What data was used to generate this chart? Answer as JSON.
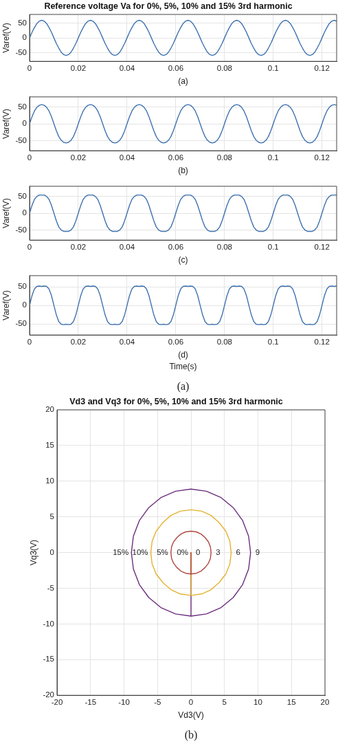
{
  "chart_data": [
    {
      "type": "line",
      "title": "Reference voltage Va for 0%, 5%, 10% and 15% 3rd harmonic",
      "ylabel": "Varef(V)",
      "annotations": [
        "(a)"
      ],
      "grid": true,
      "marker": "none",
      "xlim": [
        0,
        0.126
      ],
      "xticks": [
        0,
        0.02,
        0.04,
        0.06,
        0.08,
        0.1,
        0.12
      ],
      "ylim": [
        -80,
        80
      ],
      "yticks": [
        -50,
        0,
        50
      ],
      "x": [
        0,
        0.001,
        0.002,
        0.003,
        0.004,
        0.005,
        0.006,
        0.007,
        0.008,
        0.009,
        0.01,
        0.011,
        0.012,
        0.013,
        0.014,
        0.015,
        0.016,
        0.017,
        0.018,
        0.019,
        0.02,
        0.021,
        0.022,
        0.023,
        0.024,
        0.025,
        0.026,
        0.027,
        0.028,
        0.029,
        0.03,
        0.031,
        0.032,
        0.033,
        0.034,
        0.035,
        0.036,
        0.037,
        0.038,
        0.039,
        0.04,
        0.041,
        0.042,
        0.043,
        0.044,
        0.045,
        0.046,
        0.047,
        0.048,
        0.049,
        0.05,
        0.051,
        0.052,
        0.053,
        0.054,
        0.055,
        0.056,
        0.057,
        0.058,
        0.059,
        0.06,
        0.061,
        0.062,
        0.063,
        0.064,
        0.065,
        0.066,
        0.067,
        0.068,
        0.069,
        0.07,
        0.071,
        0.072,
        0.073,
        0.074,
        0.075,
        0.076,
        0.077,
        0.078,
        0.079,
        0.08,
        0.081,
        0.082,
        0.083,
        0.084,
        0.085,
        0.086,
        0.087,
        0.088,
        0.089,
        0.09,
        0.091,
        0.092,
        0.093,
        0.094,
        0.095,
        0.096,
        0.097,
        0.098,
        0.099,
        0.1,
        0.101,
        0.102,
        0.103,
        0.104,
        0.105,
        0.106,
        0.107,
        0.108,
        0.109,
        0.11,
        0.111,
        0.112,
        0.113,
        0.114,
        0.115,
        0.116,
        0.117,
        0.118,
        0.119,
        0.12,
        0.121,
        0.122,
        0.123,
        0.124,
        0.125,
        0.126
      ],
      "series": [
        {
          "color": "#3f72af",
          "values": [
            0,
            19,
            35,
            49,
            57,
            60,
            57,
            49,
            35,
            19,
            0,
            -19,
            -35,
            -49,
            -57,
            -60,
            -57,
            -49,
            -35,
            -19,
            0,
            19,
            35,
            49,
            57,
            60,
            57,
            49,
            35,
            19,
            0,
            -19,
            -35,
            -49,
            -57,
            -60,
            -57,
            -49,
            -35,
            -19,
            0,
            19,
            35,
            49,
            57,
            60,
            57,
            49,
            35,
            19,
            0,
            -19,
            -35,
            -49,
            -57,
            -60,
            -57,
            -49,
            -35,
            -19,
            0,
            19,
            35,
            49,
            57,
            60,
            57,
            49,
            35,
            19,
            0,
            -19,
            -35,
            -49,
            -57,
            -60,
            -57,
            -49,
            -35,
            -19,
            0,
            19,
            35,
            49,
            57,
            60,
            57,
            49,
            35,
            19,
            0,
            -19,
            -35,
            -49,
            -57,
            -60,
            -57,
            -49,
            -35,
            -19,
            0,
            19,
            35,
            49,
            57,
            60,
            57,
            49,
            35,
            19,
            0,
            -19,
            -35,
            -49,
            -57,
            -60,
            -57,
            -49,
            -35,
            -19,
            0,
            19,
            35,
            49,
            57,
            60,
            57
          ]
        }
      ]
    },
    {
      "type": "line",
      "ylabel": "Varef(V)",
      "annotations": [
        "(b)"
      ],
      "grid": true,
      "marker": "none",
      "xlim": [
        0,
        0.126
      ],
      "xticks": [
        0,
        0.02,
        0.04,
        0.06,
        0.08,
        0.1,
        0.12
      ],
      "ylim": [
        -80,
        80
      ],
      "yticks": [
        -50,
        0,
        50
      ],
      "x": [
        0,
        0.001,
        0.002,
        0.003,
        0.004,
        0.005,
        0.006,
        0.007,
        0.008,
        0.009,
        0.01,
        0.011,
        0.012,
        0.013,
        0.014,
        0.015,
        0.016,
        0.017,
        0.018,
        0.019,
        0.02,
        0.021,
        0.022,
        0.023,
        0.024,
        0.025,
        0.026,
        0.027,
        0.028,
        0.029,
        0.03,
        0.031,
        0.032,
        0.033,
        0.034,
        0.035,
        0.036,
        0.037,
        0.038,
        0.039,
        0.04,
        0.041,
        0.042,
        0.043,
        0.044,
        0.045,
        0.046,
        0.047,
        0.048,
        0.049,
        0.05,
        0.051,
        0.052,
        0.053,
        0.054,
        0.055,
        0.056,
        0.057,
        0.058,
        0.059,
        0.06,
        0.061,
        0.062,
        0.063,
        0.064,
        0.065,
        0.066,
        0.067,
        0.068,
        0.069,
        0.07,
        0.071,
        0.072,
        0.073,
        0.074,
        0.075,
        0.076,
        0.077,
        0.078,
        0.079,
        0.08,
        0.081,
        0.082,
        0.083,
        0.084,
        0.085,
        0.086,
        0.087,
        0.088,
        0.089,
        0.09,
        0.091,
        0.092,
        0.093,
        0.094,
        0.095,
        0.096,
        0.097,
        0.098,
        0.099,
        0.1,
        0.101,
        0.102,
        0.103,
        0.104,
        0.105,
        0.106,
        0.107,
        0.108,
        0.109,
        0.11,
        0.111,
        0.112,
        0.113,
        0.114,
        0.115,
        0.116,
        0.117,
        0.118,
        0.119,
        0.12,
        0.121,
        0.122,
        0.123,
        0.124,
        0.125,
        0.126
      ],
      "series": [
        {
          "color": "#3f72af",
          "values": [
            0,
            21,
            38,
            49,
            55,
            57,
            55,
            49,
            38,
            21,
            0,
            -21,
            -38,
            -49,
            -55,
            -57,
            -55,
            -49,
            -38,
            -21,
            0,
            21,
            38,
            49,
            55,
            57,
            55,
            49,
            38,
            21,
            0,
            -21,
            -38,
            -49,
            -55,
            -57,
            -55,
            -49,
            -38,
            -21,
            0,
            21,
            38,
            49,
            55,
            57,
            55,
            49,
            38,
            21,
            0,
            -21,
            -38,
            -49,
            -55,
            -57,
            -55,
            -49,
            -38,
            -21,
            0,
            21,
            38,
            49,
            55,
            57,
            55,
            49,
            38,
            21,
            0,
            -21,
            -38,
            -49,
            -55,
            -57,
            -55,
            -49,
            -38,
            -21,
            0,
            21,
            38,
            49,
            55,
            57,
            55,
            49,
            38,
            21,
            0,
            -21,
            -38,
            -49,
            -55,
            -57,
            -55,
            -49,
            -38,
            -21,
            0,
            21,
            38,
            49,
            55,
            57,
            55,
            49,
            38,
            21,
            0,
            -21,
            -38,
            -49,
            -55,
            -57,
            -55,
            -49,
            -38,
            -21,
            0,
            21,
            38,
            49,
            55,
            57,
            55
          ]
        }
      ]
    },
    {
      "type": "line",
      "ylabel": "Varef(V)",
      "annotations": [
        "(c)"
      ],
      "grid": true,
      "marker": "none",
      "xlim": [
        0,
        0.126
      ],
      "xticks": [
        0,
        0.02,
        0.04,
        0.06,
        0.08,
        0.1,
        0.12
      ],
      "ylim": [
        -80,
        80
      ],
      "yticks": [
        -50,
        0,
        50
      ],
      "x": [
        0,
        0.001,
        0.002,
        0.003,
        0.004,
        0.005,
        0.006,
        0.007,
        0.008,
        0.009,
        0.01,
        0.011,
        0.012,
        0.013,
        0.014,
        0.015,
        0.016,
        0.017,
        0.018,
        0.019,
        0.02,
        0.021,
        0.022,
        0.023,
        0.024,
        0.025,
        0.026,
        0.027,
        0.028,
        0.029,
        0.03,
        0.031,
        0.032,
        0.033,
        0.034,
        0.035,
        0.036,
        0.037,
        0.038,
        0.039,
        0.04,
        0.041,
        0.042,
        0.043,
        0.044,
        0.045,
        0.046,
        0.047,
        0.048,
        0.049,
        0.05,
        0.051,
        0.052,
        0.053,
        0.054,
        0.055,
        0.056,
        0.057,
        0.058,
        0.059,
        0.06,
        0.061,
        0.062,
        0.063,
        0.064,
        0.065,
        0.066,
        0.067,
        0.068,
        0.069,
        0.07,
        0.071,
        0.072,
        0.073,
        0.074,
        0.075,
        0.076,
        0.077,
        0.078,
        0.079,
        0.08,
        0.081,
        0.082,
        0.083,
        0.084,
        0.085,
        0.086,
        0.087,
        0.088,
        0.089,
        0.09,
        0.091,
        0.092,
        0.093,
        0.094,
        0.095,
        0.096,
        0.097,
        0.098,
        0.099,
        0.1,
        0.101,
        0.102,
        0.103,
        0.104,
        0.105,
        0.106,
        0.107,
        0.108,
        0.109,
        0.11,
        0.111,
        0.112,
        0.113,
        0.114,
        0.115,
        0.116,
        0.117,
        0.118,
        0.119,
        0.12,
        0.121,
        0.122,
        0.123,
        0.124,
        0.125,
        0.126
      ],
      "series": [
        {
          "color": "#3f72af",
          "values": [
            0,
            23,
            41,
            50,
            54,
            54,
            54,
            50,
            41,
            23,
            0,
            -23,
            -41,
            -50,
            -54,
            -54,
            -54,
            -50,
            -41,
            -23,
            0,
            23,
            41,
            50,
            54,
            54,
            54,
            50,
            41,
            23,
            0,
            -23,
            -41,
            -50,
            -54,
            -54,
            -54,
            -50,
            -41,
            -23,
            0,
            23,
            41,
            50,
            54,
            54,
            54,
            50,
            41,
            23,
            0,
            -23,
            -41,
            -50,
            -54,
            -54,
            -54,
            -50,
            -41,
            -23,
            0,
            23,
            41,
            50,
            54,
            54,
            54,
            50,
            41,
            23,
            0,
            -23,
            -41,
            -50,
            -54,
            -54,
            -54,
            -50,
            -41,
            -23,
            0,
            23,
            41,
            50,
            54,
            54,
            54,
            50,
            41,
            23,
            0,
            -23,
            -41,
            -50,
            -54,
            -54,
            -54,
            -50,
            -41,
            -23,
            0,
            23,
            41,
            50,
            54,
            54,
            54,
            50,
            41,
            23,
            0,
            -23,
            -41,
            -50,
            -54,
            -54,
            -54,
            -50,
            -41,
            -23,
            0,
            23,
            41,
            50,
            54,
            54,
            54
          ]
        }
      ]
    },
    {
      "type": "line",
      "ylabel": "Varef(V)",
      "xlabel": "Time(s)",
      "annotations": [
        "(d)",
        "(a)"
      ],
      "grid": true,
      "marker": "none",
      "xlim": [
        0,
        0.126
      ],
      "xticks": [
        0,
        0.02,
        0.04,
        0.06,
        0.08,
        0.1,
        0.12
      ],
      "ylim": [
        -80,
        80
      ],
      "yticks": [
        -50,
        0,
        50
      ],
      "x": [
        0,
        0.001,
        0.002,
        0.003,
        0.004,
        0.005,
        0.006,
        0.007,
        0.008,
        0.009,
        0.01,
        0.011,
        0.012,
        0.013,
        0.014,
        0.015,
        0.016,
        0.017,
        0.018,
        0.019,
        0.02,
        0.021,
        0.022,
        0.023,
        0.024,
        0.025,
        0.026,
        0.027,
        0.028,
        0.029,
        0.03,
        0.031,
        0.032,
        0.033,
        0.034,
        0.035,
        0.036,
        0.037,
        0.038,
        0.039,
        0.04,
        0.041,
        0.042,
        0.043,
        0.044,
        0.045,
        0.046,
        0.047,
        0.048,
        0.049,
        0.05,
        0.051,
        0.052,
        0.053,
        0.054,
        0.055,
        0.056,
        0.057,
        0.058,
        0.059,
        0.06,
        0.061,
        0.062,
        0.063,
        0.064,
        0.065,
        0.066,
        0.067,
        0.068,
        0.069,
        0.07,
        0.071,
        0.072,
        0.073,
        0.074,
        0.075,
        0.076,
        0.077,
        0.078,
        0.079,
        0.08,
        0.081,
        0.082,
        0.083,
        0.084,
        0.085,
        0.086,
        0.087,
        0.088,
        0.089,
        0.09,
        0.091,
        0.092,
        0.093,
        0.094,
        0.095,
        0.096,
        0.097,
        0.098,
        0.099,
        0.1,
        0.101,
        0.102,
        0.103,
        0.104,
        0.105,
        0.106,
        0.107,
        0.108,
        0.109,
        0.11,
        0.111,
        0.112,
        0.113,
        0.114,
        0.115,
        0.116,
        0.117,
        0.118,
        0.119,
        0.12,
        0.121,
        0.122,
        0.123,
        0.124,
        0.125,
        0.126
      ],
      "series": [
        {
          "color": "#3f72af",
          "values": [
            0,
            26,
            44,
            51,
            52,
            51,
            52,
            51,
            44,
            26,
            0,
            -26,
            -44,
            -51,
            -52,
            -51,
            -52,
            -51,
            -44,
            -26,
            0,
            26,
            44,
            51,
            52,
            51,
            52,
            51,
            44,
            26,
            0,
            -26,
            -44,
            -51,
            -52,
            -51,
            -52,
            -51,
            -44,
            -26,
            0,
            26,
            44,
            51,
            52,
            51,
            52,
            51,
            44,
            26,
            0,
            -26,
            -44,
            -51,
            -52,
            -51,
            -52,
            -51,
            -44,
            -26,
            0,
            26,
            44,
            51,
            52,
            51,
            52,
            51,
            44,
            26,
            0,
            -26,
            -44,
            -51,
            -52,
            -51,
            -52,
            -51,
            -44,
            -26,
            0,
            26,
            44,
            51,
            52,
            51,
            52,
            51,
            44,
            26,
            0,
            -26,
            -44,
            -51,
            -52,
            -51,
            -52,
            -51,
            -44,
            -26,
            0,
            26,
            44,
            51,
            52,
            51,
            52,
            51,
            44,
            26,
            0,
            -26,
            -44,
            -51,
            -52,
            -51,
            -52,
            -51,
            -44,
            -26,
            0,
            26,
            44,
            51,
            52,
            51,
            52
          ]
        }
      ]
    },
    {
      "type": "line",
      "title": "Vd3 and Vq3 for 0%, 5%, 10% and 15% 3rd harmonic",
      "xlabel": "Vd3(V)",
      "ylabel": "Vq3(V)",
      "grid": true,
      "marker": "none",
      "xlim": [
        -20,
        20
      ],
      "xticks": [
        -20,
        -15,
        -10,
        -5,
        0,
        5,
        10,
        15,
        20
      ],
      "ylim": [
        -20,
        20
      ],
      "yticks": [
        -20,
        -15,
        -10,
        -5,
        0,
        5,
        10,
        15,
        20
      ],
      "annotations": [
        {
          "text": "15%",
          "x": -8.9,
          "y": 0
        },
        {
          "text": "10%",
          "x": -6,
          "y": 0
        },
        {
          "text": "5%",
          "x": -3,
          "y": 0
        },
        {
          "text": "0%",
          "x": 0,
          "y": 0
        },
        {
          "text": "0",
          "x": 0,
          "y": 0
        },
        {
          "text": "3",
          "x": 3,
          "y": 0
        },
        {
          "text": "6",
          "x": 6,
          "y": 0
        },
        {
          "text": "9",
          "x": 8.9,
          "y": 0
        },
        "(b)"
      ],
      "series": [
        {
          "color": "#b0463c",
          "x": [
            0,
            0,
            0.8,
            1.5,
            2.1,
            2.6,
            2.9,
            3,
            2.9,
            2.6,
            2.1,
            1.5,
            0.8,
            0,
            -0.8,
            -1.5,
            -2.1,
            -2.6,
            -2.9,
            -3,
            -2.9,
            -2.6,
            -2.1,
            -1.5,
            -0.8,
            0
          ],
          "values": [
            0,
            -3,
            -2.9,
            -2.6,
            -2.1,
            -1.5,
            -0.8,
            0,
            0.8,
            1.5,
            2.1,
            2.6,
            2.9,
            3,
            2.9,
            2.6,
            2.1,
            1.5,
            0.8,
            0,
            -0.8,
            -1.5,
            -2.1,
            -2.6,
            -2.9,
            -3
          ]
        },
        {
          "color": "#e3b22f",
          "x": [
            0,
            0,
            1.6,
            3,
            4.2,
            5.2,
            5.8,
            6,
            5.8,
            5.2,
            4.2,
            3,
            1.6,
            0,
            -1.6,
            -3,
            -4.2,
            -5.2,
            -5.8,
            -6,
            -5.8,
            -5.2,
            -4.2,
            -3,
            -1.6,
            0
          ],
          "values": [
            0,
            -6,
            -5.8,
            -5.2,
            -4.2,
            -3,
            -1.6,
            0,
            1.6,
            3,
            4.2,
            5.2,
            5.8,
            6,
            5.8,
            5.2,
            4.2,
            3,
            1.6,
            0,
            -1.6,
            -3,
            -4.2,
            -5.2,
            -5.8,
            -6
          ]
        },
        {
          "color": "#6b2d7c",
          "x": [
            0,
            0,
            2.3,
            4.5,
            6.3,
            7.7,
            8.6,
            8.9,
            8.6,
            7.7,
            6.3,
            4.5,
            2.3,
            0,
            -2.3,
            -4.5,
            -6.3,
            -7.7,
            -8.6,
            -8.9,
            -8.6,
            -7.7,
            -6.3,
            -4.5,
            -2.3,
            0
          ],
          "values": [
            0,
            -8.9,
            -8.6,
            -7.7,
            -6.3,
            -4.5,
            -2.3,
            0,
            2.3,
            4.5,
            6.3,
            7.7,
            8.6,
            8.9,
            8.6,
            7.7,
            6.3,
            4.5,
            2.3,
            0,
            -2.3,
            -4.5,
            -6.3,
            -7.7,
            -8.6,
            -8.9
          ]
        }
      ]
    }
  ]
}
